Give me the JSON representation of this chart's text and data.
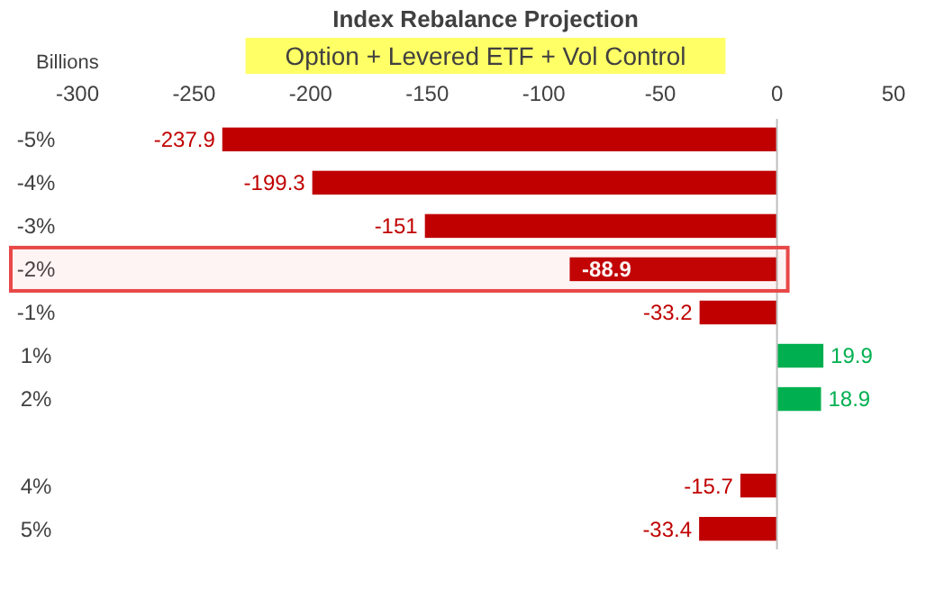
{
  "chart_data": {
    "type": "bar",
    "orientation": "horizontal",
    "title": "Index Rebalance Projection",
    "subtitle": "Option + Levered ETF + Vol Control",
    "xlabel": "Billions",
    "categories": [
      "-5%",
      "-4%",
      "-3%",
      "-2%",
      "-1%",
      "1%",
      "2%",
      null,
      "4%",
      "5%"
    ],
    "values": [
      -237.9,
      -199.3,
      -151,
      -88.9,
      -33.2,
      19.9,
      18.9,
      null,
      -15.7,
      -33.4
    ],
    "colors": [
      "#c00000",
      "#c00000",
      "#c00000",
      "#c00000",
      "#c00000",
      "#00b050",
      "#00b050",
      null,
      "#c00000",
      "#c00000"
    ],
    "xlim": [
      -300,
      50
    ],
    "xticks": [
      -300,
      -250,
      -200,
      -150,
      -100,
      -50,
      0,
      50
    ],
    "data_labels": true,
    "bands": [
      {
        "axis": "y",
        "from": "-2%",
        "to": "-2%",
        "color": "#e84848"
      }
    ]
  }
}
